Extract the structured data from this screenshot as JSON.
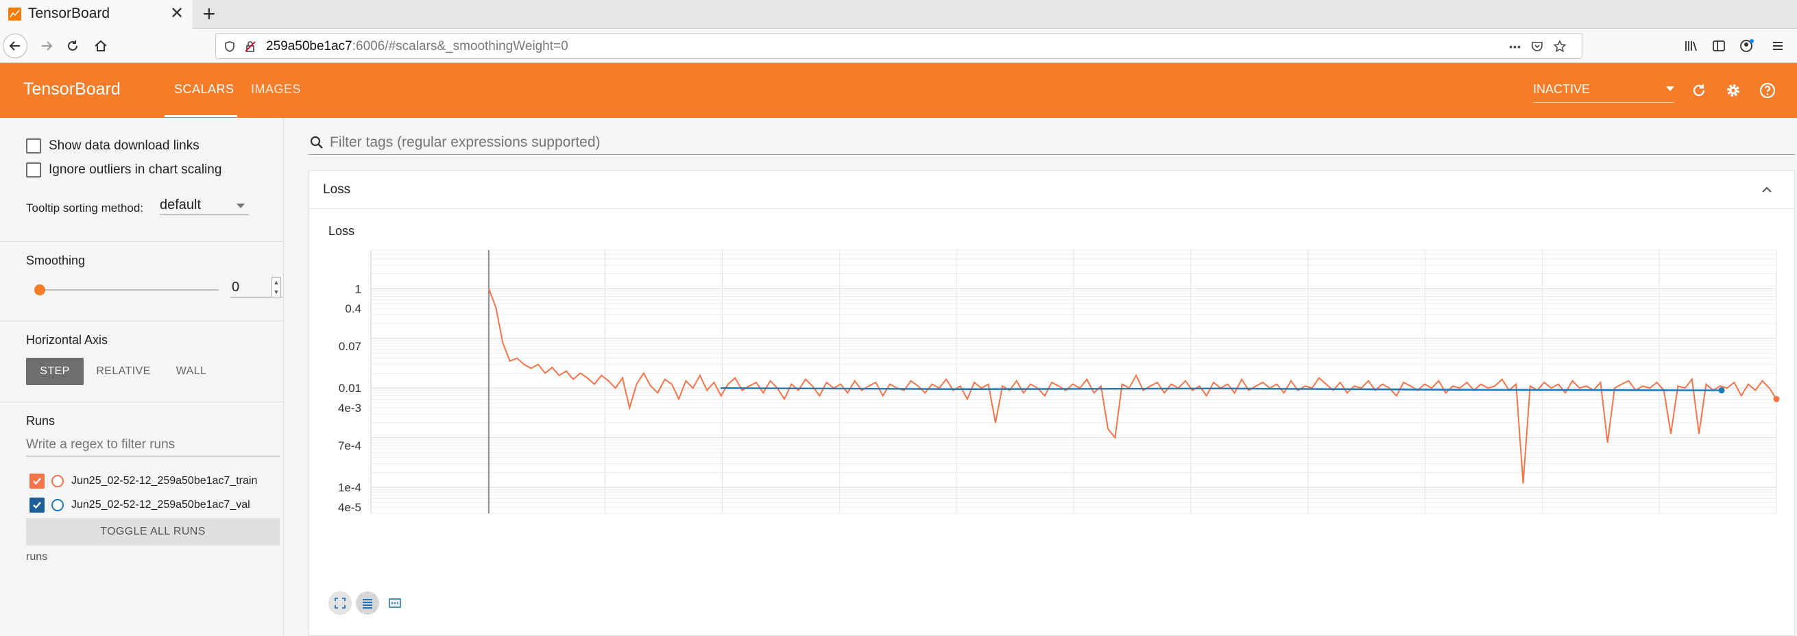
{
  "browser": {
    "tab_title": "TensorBoard",
    "url_host": "259a50be1ac7",
    "url_rest": ":6006/#scalars&_smoothingWeight=0",
    "url_ellipsis": "•••"
  },
  "header": {
    "logo": "TensorBoard",
    "tabs": [
      "SCALARS",
      "IMAGES"
    ],
    "status_select": "INACTIVE"
  },
  "sidebar": {
    "show_download_links": "Show data download links",
    "ignore_outliers": "Ignore outliers in chart scaling",
    "tooltip_label": "Tooltip sorting method:",
    "tooltip_value": "default",
    "smoothing_label": "Smoothing",
    "smoothing_value": "0",
    "smoothing_level": 0,
    "axis_label": "Horizontal Axis",
    "axis_options": [
      "STEP",
      "RELATIVE",
      "WALL"
    ],
    "axis_selected": "STEP",
    "runs_label": "Runs",
    "runs_filter_placeholder": "Write a regex to filter runs",
    "runs": [
      {
        "name": "Jun25_02-52-12_259a50be1ac7_train",
        "color": "#f4744b",
        "checked": true
      },
      {
        "name": "Jun25_02-52-12_259a50be1ac7_val",
        "color": "#1f78b4",
        "checked": true
      }
    ],
    "toggle_all": "TOGGLE ALL RUNS",
    "runs_footer": "runs"
  },
  "main": {
    "filter_placeholder": "Filter tags (regular expressions supported)",
    "card_title": "Loss",
    "chart_title": "Loss"
  },
  "colors": {
    "accent": "#f57c29",
    "train": "#f4744b",
    "val": "#1f78b4"
  },
  "chart_data": {
    "type": "line",
    "title": "Loss",
    "y_scale": "log",
    "ylim": [
      3e-05,
      6
    ],
    "y_ticks": [
      "1",
      "0.4",
      "0.07",
      "0.01",
      "4e-3",
      "7e-4",
      "1e-4",
      "4e-5"
    ],
    "y_tick_values": [
      1,
      0.4,
      0.07,
      0.01,
      0.004,
      0.0007,
      0.0001,
      4e-05
    ],
    "x_ticks_visible": false,
    "grid": true,
    "series": [
      {
        "name": "Jun25_02-52-12_259a50be1ac7_train",
        "color": "#f4744b",
        "values": [
          1,
          0.42,
          0.08,
          0.035,
          0.04,
          0.03,
          0.025,
          0.03,
          0.02,
          0.026,
          0.018,
          0.022,
          0.015,
          0.02,
          0.016,
          0.012,
          0.018,
          0.014,
          0.01,
          0.016,
          0.004,
          0.012,
          0.02,
          0.011,
          0.008,
          0.015,
          0.012,
          0.006,
          0.014,
          0.01,
          0.018,
          0.009,
          0.013,
          0.007,
          0.012,
          0.016,
          0.009,
          0.011,
          0.013,
          0.008,
          0.014,
          0.01,
          0.006,
          0.012,
          0.009,
          0.015,
          0.011,
          0.007,
          0.013,
          0.01,
          0.012,
          0.008,
          0.014,
          0.009,
          0.011,
          0.013,
          0.007,
          0.012,
          0.01,
          0.009,
          0.014,
          0.011,
          0.008,
          0.012,
          0.01,
          0.015,
          0.009,
          0.011,
          0.006,
          0.013,
          0.01,
          0.012,
          0.002,
          0.011,
          0.009,
          0.014,
          0.008,
          0.012,
          0.01,
          0.007,
          0.013,
          0.011,
          0.009,
          0.012,
          0.01,
          0.015,
          0.008,
          0.011,
          0.0015,
          0.001,
          0.012,
          0.01,
          0.018,
          0.009,
          0.011,
          0.013,
          0.008,
          0.012,
          0.01,
          0.014,
          0.009,
          0.011,
          0.007,
          0.013,
          0.01,
          0.012,
          0.008,
          0.015,
          0.009,
          0.011,
          0.013,
          0.01,
          0.012,
          0.008,
          0.014,
          0.009,
          0.011,
          0.01,
          0.016,
          0.012,
          0.009,
          0.013,
          0.008,
          0.011,
          0.01,
          0.014,
          0.009,
          0.012,
          0.01,
          0.007,
          0.013,
          0.011,
          0.009,
          0.012,
          0.01,
          0.014,
          0.008,
          0.011,
          0.01,
          0.013,
          0.009,
          0.012,
          0.01,
          0.011,
          0.015,
          0.009,
          0.012,
          0.00012,
          0.011,
          0.009,
          0.013,
          0.01,
          0.012,
          0.008,
          0.014,
          0.01,
          0.011,
          0.009,
          0.013,
          0.0008,
          0.01,
          0.012,
          0.014,
          0.009,
          0.011,
          0.01,
          0.013,
          0.009,
          0.0012,
          0.011,
          0.01,
          0.015,
          0.0012,
          0.012,
          0.009,
          0.011,
          0.01,
          0.013,
          0.007,
          0.012,
          0.009,
          0.014,
          0.01,
          0.006
        ]
      },
      {
        "name": "Jun25_02-52-12_259a50be1ac7_val",
        "color": "#1f78b4",
        "values": [
          0.01,
          0.0095,
          0.0098,
          0.0092,
          0.009
        ]
      }
    ]
  }
}
